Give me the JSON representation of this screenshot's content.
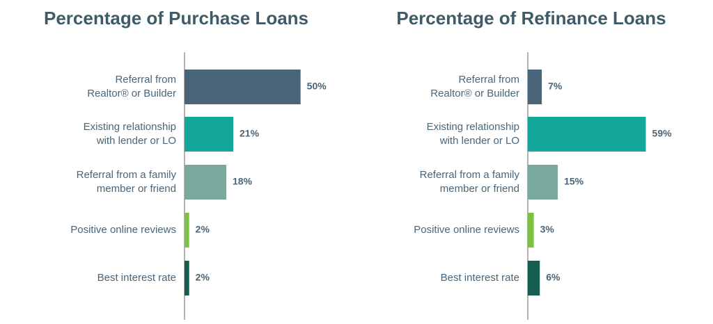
{
  "chart_data": [
    {
      "type": "hbar",
      "title": "Percentage of Purchase Loans",
      "categories": [
        [
          "Referral from",
          "Realtor® or Builder"
        ],
        [
          "Existing relationship",
          "with lender or LO"
        ],
        [
          "Referral from a family",
          "member or friend"
        ],
        [
          "Positive online reviews"
        ],
        [
          "Best interest rate"
        ]
      ],
      "values": [
        50,
        21,
        18,
        2,
        2
      ],
      "value_labels": [
        "50%",
        "21%",
        "18%",
        "2%",
        "2%"
      ],
      "colors": [
        "#4a6577",
        "#14a89b",
        "#7aa89e",
        "#7dc242",
        "#155e4f"
      ],
      "xlim": [
        0,
        75
      ]
    },
    {
      "type": "hbar",
      "title": "Percentage of Refinance Loans",
      "categories": [
        [
          "Referral from",
          "Realtor® or Builder"
        ],
        [
          "Existing relationship",
          "with lender or LO"
        ],
        [
          "Referral from a family",
          "member or friend"
        ],
        [
          "Positive online reviews"
        ],
        [
          "Best interest rate"
        ]
      ],
      "values": [
        7,
        59,
        15,
        3,
        6
      ],
      "value_labels": [
        "7%",
        "59%",
        "15%",
        "3%",
        "6%"
      ],
      "colors": [
        "#4a6577",
        "#14a89b",
        "#7aa89e",
        "#7dc242",
        "#155e4f"
      ],
      "xlim": [
        0,
        87
      ]
    }
  ]
}
